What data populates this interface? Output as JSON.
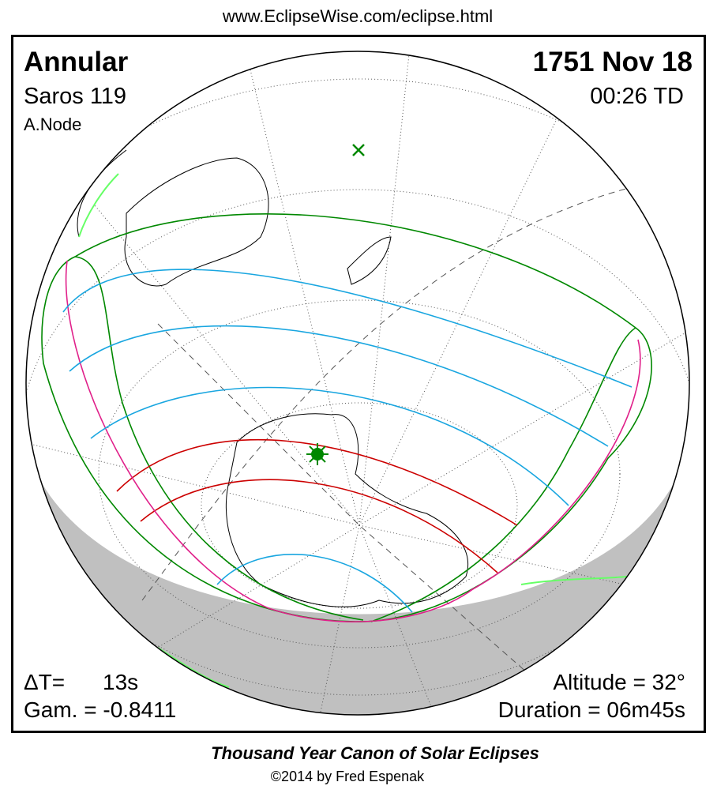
{
  "header": {
    "url": "www.EclipseWise.com/eclipse.html"
  },
  "panel": {
    "top_left": {
      "eclipse_type": "Annular",
      "saros": "Saros 119",
      "node": "A.Node"
    },
    "top_right": {
      "date": "1751 Nov 18",
      "time": "00:26 TD"
    },
    "bottom_left": {
      "delta_t_label": "ΔT=",
      "delta_t_value": "13s",
      "gamma": "Gam. = -0.8411"
    },
    "bottom_right": {
      "altitude": "Altitude = 32°",
      "duration": "Duration = 06m45s"
    }
  },
  "footer": {
    "title": "Thousand Year Canon of Solar Eclipses",
    "copyright": "©2014 by Fred Espenak"
  }
}
